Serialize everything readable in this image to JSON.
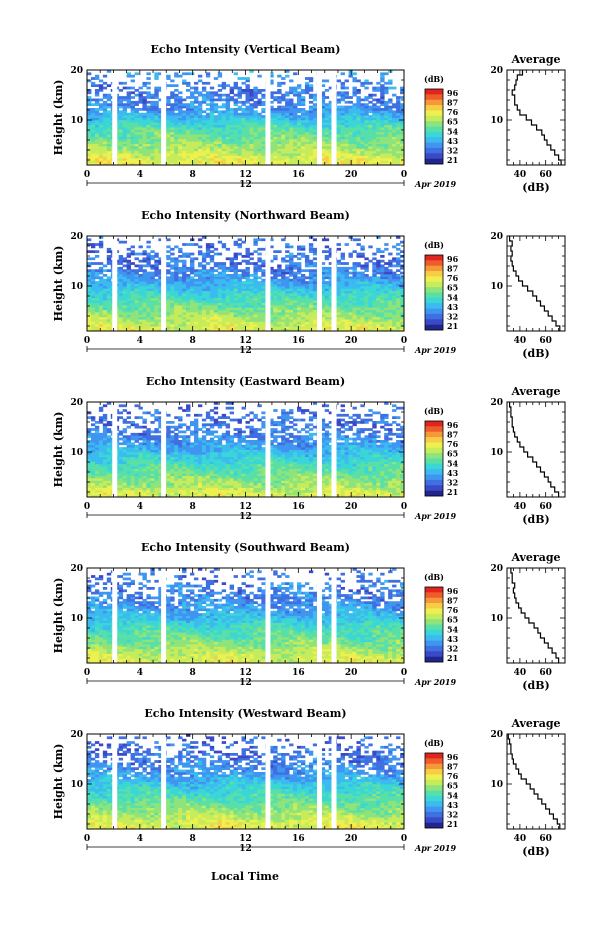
{
  "figure": {
    "bottom_xlabel": "Local Time",
    "date_label": "Apr 2019"
  },
  "colorbar": {
    "unit": "(dB)",
    "ticks": [
      "96",
      "87",
      "76",
      "65",
      "54",
      "43",
      "32",
      "21"
    ],
    "colors": [
      "#21268f",
      "#3a49c8",
      "#3f6fe0",
      "#3f95ef",
      "#3bbbf0",
      "#3bd6d6",
      "#59dfa8",
      "#8ee47a",
      "#c6ec5c",
      "#eef04f",
      "#f6cd44",
      "#f49838",
      "#ef5c2c",
      "#e0251f"
    ]
  },
  "panels": [
    {
      "id": "vertical",
      "title": "Echo Intensity (Vertical Beam)"
    },
    {
      "id": "northward",
      "title": "Echo Intensity (Northward Beam)"
    },
    {
      "id": "eastward",
      "title": "Echo Intensity (Eastward Beam)"
    },
    {
      "id": "southward",
      "title": "Echo Intensity (Southward Beam)"
    },
    {
      "id": "westward",
      "title": "Echo Intensity (Westward Beam)"
    }
  ],
  "chart_data": [
    {
      "type": "heatmap",
      "title": "Echo Intensity (Vertical Beam)",
      "xlabel": "",
      "ylabel": "Height (km)",
      "x_ticks": [
        "0",
        "4",
        "8",
        "12",
        "16",
        "20",
        "0"
      ],
      "y_ticks": [
        "10",
        "20"
      ],
      "xlim_hours": [
        0,
        24
      ],
      "ylim_km": [
        1,
        20
      ],
      "gap_hours": [
        2.1,
        5.8,
        13.7,
        17.6,
        18.7
      ],
      "profile": {
        "title": "Average",
        "xlabel": "(dB)",
        "x_ticks": [
          "40",
          "60"
        ],
        "y_ticks": [
          "10",
          "20"
        ],
        "xlim_db": [
          30,
          75
        ],
        "ylim_km": [
          1,
          20
        ],
        "height_km": [
          1.5,
          2.5,
          3.5,
          4.5,
          5.5,
          6.5,
          7.5,
          8.5,
          9.5,
          10.5,
          11.5,
          12.5,
          13.5,
          14.5,
          15.5,
          16.5,
          17.5,
          18.5,
          19.5
        ],
        "echo_db": [
          72,
          70,
          67,
          64,
          61,
          59,
          57,
          53,
          49,
          45,
          40,
          38,
          36,
          36,
          34,
          36,
          37,
          38,
          42
        ]
      }
    },
    {
      "type": "heatmap",
      "title": "Echo Intensity (Northward Beam)",
      "xlabel": "",
      "ylabel": "Height (km)",
      "x_ticks": [
        "0",
        "4",
        "8",
        "12",
        "16",
        "20",
        "0"
      ],
      "y_ticks": [
        "10",
        "20"
      ],
      "xlim_hours": [
        0,
        24
      ],
      "ylim_km": [
        1,
        20
      ],
      "gap_hours": [
        2.1,
        5.8,
        13.7,
        17.6,
        18.7
      ],
      "profile": {
        "title": "",
        "xlabel": "(dB)",
        "x_ticks": [
          "40",
          "60"
        ],
        "y_ticks": [
          "10",
          "20"
        ],
        "xlim_db": [
          30,
          75
        ],
        "ylim_km": [
          1,
          20
        ],
        "height_km": [
          1.5,
          2.5,
          3.5,
          4.5,
          5.5,
          6.5,
          7.5,
          8.5,
          9.5,
          10.5,
          11.5,
          12.5,
          13.5,
          14.5,
          15.5,
          16.5,
          17.5,
          18.5,
          19.5
        ],
        "echo_db": [
          71,
          68,
          65,
          62,
          59,
          56,
          53,
          50,
          46,
          42,
          39,
          37,
          35,
          34,
          33,
          34,
          33,
          34,
          32
        ]
      }
    },
    {
      "type": "heatmap",
      "title": "Echo Intensity (Eastward Beam)",
      "xlabel": "",
      "ylabel": "Height (km)",
      "x_ticks": [
        "0",
        "4",
        "8",
        "12",
        "16",
        "20",
        "0"
      ],
      "y_ticks": [
        "10",
        "20"
      ],
      "xlim_hours": [
        0,
        24
      ],
      "ylim_km": [
        1,
        20
      ],
      "gap_hours": [
        2.1,
        5.8,
        13.7,
        17.6,
        18.7
      ],
      "profile": {
        "title": "Average",
        "xlabel": "(dB)",
        "x_ticks": [
          "40",
          "60"
        ],
        "y_ticks": [
          "10",
          "20"
        ],
        "xlim_db": [
          30,
          75
        ],
        "ylim_km": [
          1,
          20
        ],
        "height_km": [
          1.5,
          2.5,
          3.5,
          4.5,
          5.5,
          6.5,
          7.5,
          8.5,
          9.5,
          10.5,
          11.5,
          12.5,
          13.5,
          14.5,
          15.5,
          16.5,
          17.5,
          18.5,
          19.5
        ],
        "echo_db": [
          70,
          67,
          64,
          62,
          59,
          56,
          53,
          50,
          46,
          43,
          40,
          38,
          36,
          35,
          34,
          34,
          33,
          33,
          32
        ]
      }
    },
    {
      "type": "heatmap",
      "title": "Echo Intensity (Southward Beam)",
      "xlabel": "",
      "ylabel": "Height (km)",
      "x_ticks": [
        "0",
        "4",
        "8",
        "12",
        "16",
        "20",
        "0"
      ],
      "y_ticks": [
        "10",
        "20"
      ],
      "xlim_hours": [
        0,
        24
      ],
      "ylim_km": [
        1,
        20
      ],
      "gap_hours": [
        2.1,
        5.8,
        13.7,
        17.6,
        18.7
      ],
      "profile": {
        "title": "Average",
        "xlabel": "(dB)",
        "x_ticks": [
          "40",
          "60"
        ],
        "y_ticks": [
          "10",
          "20"
        ],
        "xlim_db": [
          30,
          75
        ],
        "ylim_km": [
          1,
          20
        ],
        "height_km": [
          1.5,
          2.5,
          3.5,
          4.5,
          5.5,
          6.5,
          7.5,
          8.5,
          9.5,
          10.5,
          11.5,
          12.5,
          13.5,
          14.5,
          15.5,
          16.5,
          17.5,
          18.5,
          19.5
        ],
        "echo_db": [
          70,
          68,
          65,
          62,
          59,
          56,
          54,
          51,
          47,
          44,
          41,
          39,
          37,
          36,
          35,
          36,
          34,
          34,
          33
        ]
      }
    },
    {
      "type": "heatmap",
      "title": "Echo Intensity (Westward Beam)",
      "xlabel": "Local Time",
      "ylabel": "Height (km)",
      "x_ticks": [
        "0",
        "4",
        "8",
        "12",
        "16",
        "20",
        "0"
      ],
      "y_ticks": [
        "10",
        "20"
      ],
      "xlim_hours": [
        0,
        24
      ],
      "ylim_km": [
        1,
        20
      ],
      "gap_hours": [
        2.1,
        5.8,
        13.7,
        17.6,
        18.7
      ],
      "profile": {
        "title": "Average",
        "xlabel": "(dB)",
        "x_ticks": [
          "40",
          "60"
        ],
        "y_ticks": [
          "10",
          "20"
        ],
        "xlim_db": [
          30,
          75
        ],
        "ylim_km": [
          1,
          20
        ],
        "height_km": [
          1.5,
          2.5,
          3.5,
          4.5,
          5.5,
          6.5,
          7.5,
          8.5,
          9.5,
          10.5,
          11.5,
          12.5,
          13.5,
          14.5,
          15.5,
          16.5,
          17.5,
          18.5,
          19.5
        ],
        "echo_db": [
          71,
          69,
          66,
          63,
          60,
          57,
          54,
          51,
          48,
          45,
          41,
          39,
          37,
          35,
          34,
          33,
          33,
          32,
          31
        ]
      }
    }
  ]
}
